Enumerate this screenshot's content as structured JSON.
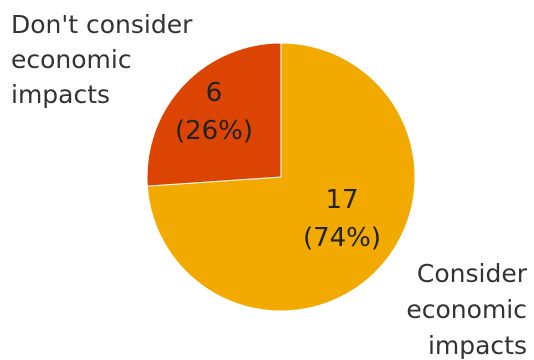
{
  "chart_data": {
    "type": "pie",
    "title": "",
    "slices": [
      {
        "category_lines": [
          "Consider",
          "economic",
          "impacts"
        ],
        "value": 17,
        "value_text": "17",
        "percent_text": "(74%)",
        "color": "#F2A900"
      },
      {
        "category_lines": [
          "Don't consider",
          "economic",
          "impacts"
        ],
        "value": 6,
        "value_text": "6",
        "percent_text": "(26%)",
        "color": "#DB4403"
      }
    ]
  }
}
